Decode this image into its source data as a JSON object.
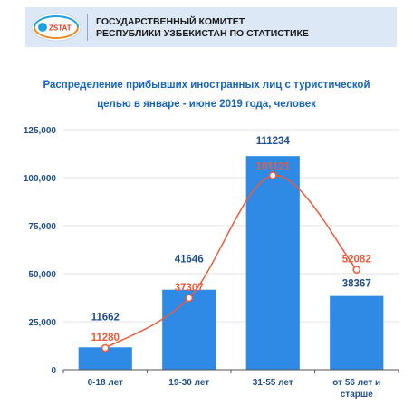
{
  "header": {
    "logo_text": "ZSTAT",
    "org_line1": "ГОСУДАРСТВЕННЫЙ КОМИТЕТ",
    "org_line2": "РЕСПУБЛИКИ УЗБЕКИСТАН ПО СТАТИСТИКЕ"
  },
  "chart_data": {
    "type": "bar",
    "title_line1": "Распределение прибывших иностранных лиц с туристической",
    "title_line2": "целью в январе - июне 2019 года, человек",
    "categories": [
      {
        "line1": "0-18 лет",
        "line2": ""
      },
      {
        "line1": "19-30 лет",
        "line2": ""
      },
      {
        "line1": "31-55 лет",
        "line2": ""
      },
      {
        "line1": "от 56 лет и",
        "line2": "старше"
      }
    ],
    "series": [
      {
        "type": "bar",
        "values": [
          11662,
          41646,
          111234,
          38367
        ],
        "labels": [
          "11662",
          "41646",
          "111234",
          "38367"
        ]
      },
      {
        "type": "line",
        "smooth": true,
        "values": [
          11280,
          37307,
          101121,
          52082
        ],
        "labels": [
          "11280",
          "37307",
          "101121",
          "52082"
        ]
      }
    ],
    "ylim": [
      0,
      125000
    ],
    "yticks": [
      {
        "value": 0,
        "label": "0"
      },
      {
        "value": 25000,
        "label": "25,000"
      },
      {
        "value": 50000,
        "label": "50,000"
      },
      {
        "value": 75000,
        "label": "75,000"
      },
      {
        "value": 100000,
        "label": "100,000"
      },
      {
        "value": 125000,
        "label": "125,000"
      }
    ],
    "grid": true,
    "colors": {
      "bar": "#2f8ae6",
      "line": "#ef5a3a",
      "bar_label": "#1f4e8c",
      "line_label": "#ef5a3a",
      "tick": "#1f4e8c"
    }
  }
}
